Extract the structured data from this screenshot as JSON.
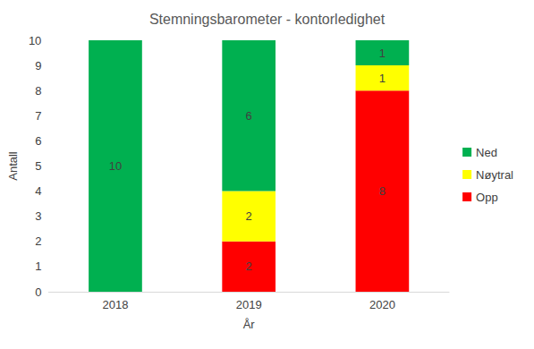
{
  "chart_data": {
    "type": "bar",
    "title": "Stemningsbarometer - kontorledighet",
    "x_label": "År",
    "y_label": "Antall",
    "categories": [
      "2018",
      "2019",
      "2020"
    ],
    "series": [
      {
        "name": "Ned",
        "color": "#00b050",
        "values": [
          10,
          6,
          1
        ]
      },
      {
        "name": "Nøytral",
        "color": "#ffff00",
        "values": [
          null,
          2,
          1
        ]
      },
      {
        "name": "Opp",
        "color": "#ff0000",
        "values": [
          null,
          2,
          8
        ]
      }
    ],
    "ylim": [
      0,
      10
    ],
    "yticks": [
      0,
      1,
      2,
      3,
      4,
      5,
      6,
      7,
      8,
      9,
      10
    ],
    "stacked": true,
    "data_labels": true,
    "grid": false,
    "legend": "right"
  }
}
